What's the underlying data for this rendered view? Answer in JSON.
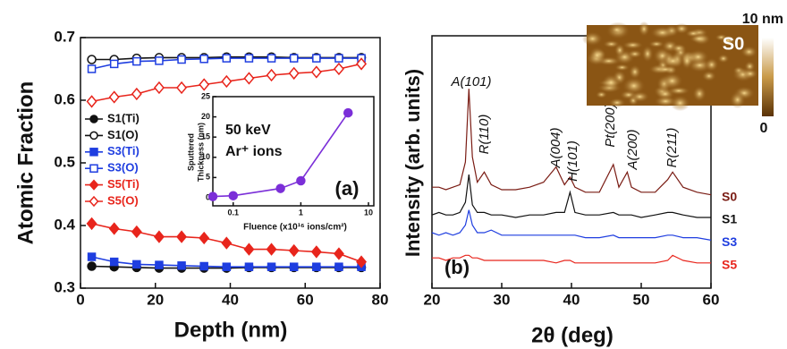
{
  "chart_data": [
    {
      "type": "line",
      "xlabel": "Depth (nm)",
      "ylabel": "Atomic Fraction",
      "panel_label": "(a)",
      "xlim": [
        0,
        80
      ],
      "ylim": [
        0.3,
        0.7
      ],
      "xticks": [
        0,
        20,
        40,
        60,
        80
      ],
      "yticks": [
        0.3,
        0.4,
        0.5,
        0.6,
        0.7
      ],
      "legend": "left",
      "x": [
        3,
        9,
        15,
        21,
        27,
        33,
        39,
        45,
        51,
        57,
        63,
        69,
        75
      ],
      "series": [
        {
          "name": "S1(Ti)",
          "color": "#111111",
          "marker": "circle",
          "filled": true,
          "values": [
            0.335,
            0.334,
            0.333,
            0.332,
            0.332,
            0.332,
            0.332,
            0.333,
            0.333,
            0.333,
            0.333,
            0.333,
            0.333
          ]
        },
        {
          "name": "S1(O)",
          "color": "#111111",
          "marker": "circle",
          "filled": false,
          "values": [
            0.665,
            0.665,
            0.667,
            0.668,
            0.668,
            0.668,
            0.669,
            0.669,
            0.669,
            0.668,
            0.668,
            0.668,
            0.668
          ]
        },
        {
          "name": "S3(Ti)",
          "color": "#1f3ee0",
          "marker": "square",
          "filled": true,
          "values": [
            0.35,
            0.342,
            0.338,
            0.337,
            0.336,
            0.335,
            0.334,
            0.334,
            0.334,
            0.334,
            0.334,
            0.334,
            0.334
          ]
        },
        {
          "name": "S3(O)",
          "color": "#1f3ee0",
          "marker": "square",
          "filled": false,
          "values": [
            0.65,
            0.658,
            0.662,
            0.663,
            0.665,
            0.666,
            0.667,
            0.667,
            0.667,
            0.667,
            0.667,
            0.667,
            0.667
          ]
        },
        {
          "name": "S5(Ti)",
          "color": "#e8251c",
          "marker": "diamond",
          "filled": true,
          "values": [
            0.403,
            0.395,
            0.39,
            0.382,
            0.382,
            0.38,
            0.372,
            0.362,
            0.362,
            0.36,
            0.358,
            0.355,
            0.342
          ]
        },
        {
          "name": "S5(O)",
          "color": "#e8251c",
          "marker": "diamond",
          "filled": false,
          "values": [
            0.598,
            0.605,
            0.61,
            0.62,
            0.62,
            0.625,
            0.63,
            0.635,
            0.64,
            0.643,
            0.645,
            0.65,
            0.658
          ]
        }
      ]
    },
    {
      "type": "line",
      "xlabel": "Fluence (x10¹⁶ ions/cm²)",
      "ylabel": [
        "Sputtered",
        "Thickness (nm)"
      ],
      "annotations": [
        "50 keV",
        "Ar⁺ ions"
      ],
      "xscale": "log",
      "xlim": [
        0.05,
        12
      ],
      "ylim": [
        -2,
        25
      ],
      "xticks": [
        0.1,
        1,
        10
      ],
      "yticks": [
        0,
        5,
        10,
        15,
        20,
        25
      ],
      "x": [
        0.05,
        0.1,
        0.5,
        1,
        5
      ],
      "series": [
        {
          "color": "#7b2fd8",
          "marker": "circle",
          "filled": true,
          "values": [
            0.3,
            0.5,
            2.3,
            4.2,
            21
          ]
        }
      ]
    },
    {
      "type": "line",
      "xlabel": "2θ (deg)",
      "ylabel": "Intensity (arb. units)",
      "panel_label": "(b)",
      "xlim": [
        20,
        60
      ],
      "ylim": [
        0,
        100
      ],
      "xticks": [
        20,
        30,
        40,
        50,
        60
      ],
      "annotations": [
        "A(101)",
        "R(110)",
        "A(004)",
        "H(101)",
        "Pt(200)",
        "A(200)",
        "R(211)"
      ],
      "x": [
        20,
        21,
        22,
        23,
        24,
        24.8,
        25.3,
        25.8,
        26.5,
        27.5,
        28.5,
        30,
        32,
        34,
        36,
        37.8,
        39,
        39.8,
        40.5,
        42,
        44,
        46,
        46.8,
        48,
        48.6,
        50,
        52,
        53.8,
        54.5,
        56,
        58,
        60
      ],
      "series": [
        {
          "name": "S0",
          "color": "#7a1c14",
          "values": [
            40,
            40,
            39,
            40,
            41,
            50,
            79,
            52,
            42,
            46,
            41,
            39,
            39,
            40,
            42,
            48,
            41,
            44,
            40,
            38,
            38,
            49,
            40,
            46,
            40,
            38,
            38,
            43,
            46,
            40,
            38,
            37
          ]
        },
        {
          "name": "S1",
          "color": "#111111",
          "values": [
            29,
            30,
            29,
            29,
            30,
            34,
            45,
            33,
            30,
            30,
            29,
            29,
            28,
            29,
            29,
            30,
            30,
            38,
            30,
            29,
            29,
            30,
            29,
            29,
            29,
            28,
            29,
            30,
            30,
            29,
            28,
            28
          ]
        },
        {
          "name": "S3",
          "color": "#1f3ee0",
          "values": [
            22,
            21,
            22,
            21,
            22,
            25,
            31,
            25,
            22,
            22,
            23,
            21,
            21,
            21,
            21,
            21,
            21,
            21,
            21,
            20,
            20,
            21,
            20,
            20,
            20,
            20,
            20,
            21,
            21,
            20,
            20,
            19
          ]
        },
        {
          "name": "S5",
          "color": "#e8251c",
          "values": [
            12,
            12,
            11,
            12,
            12,
            13,
            13,
            12,
            12,
            11,
            11,
            11,
            11,
            11,
            11,
            10,
            11,
            11,
            10,
            10,
            10,
            10,
            10,
            10,
            10,
            10,
            10,
            11,
            13,
            11,
            10,
            10
          ]
        }
      ]
    }
  ],
  "afm_inset": {
    "label": "S0",
    "colorbar_labels": [
      "10 nm",
      "0"
    ]
  }
}
